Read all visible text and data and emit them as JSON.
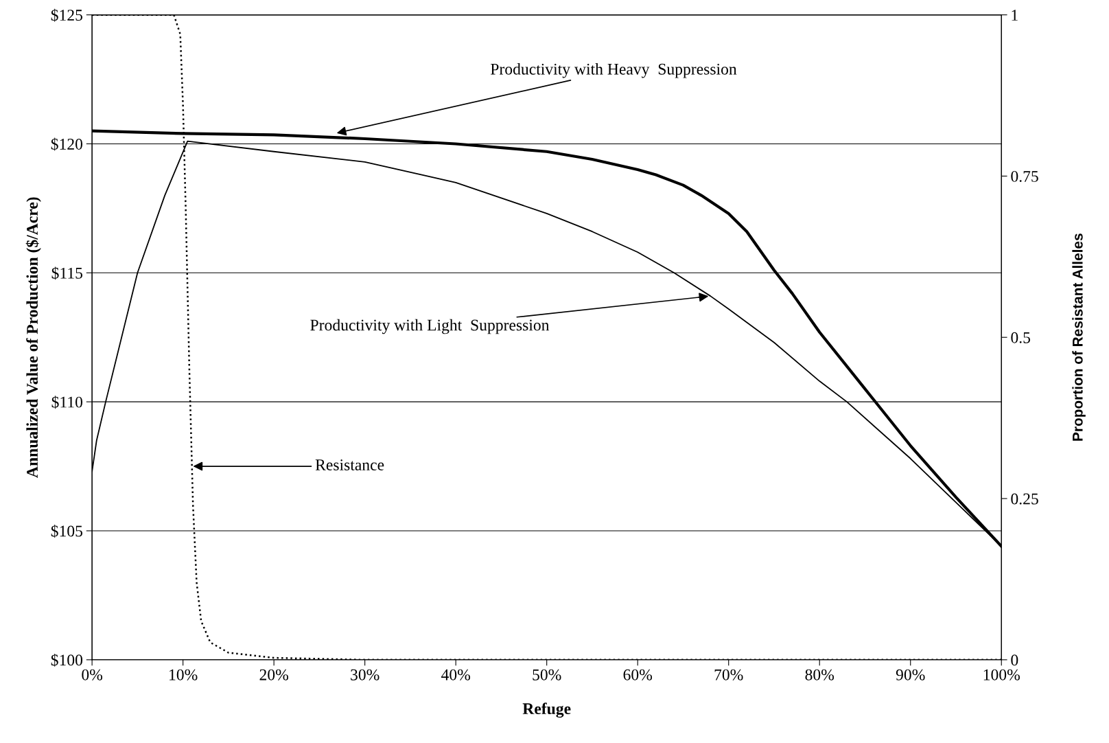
{
  "chart_data": {
    "type": "line",
    "xlabel": "Refuge",
    "ylabel": "Annualized Value of Production ($/Acre)",
    "y2label": "Proportion of Resistant Alleles",
    "xlim": [
      0,
      100
    ],
    "xticks": [
      {
        "value": 0,
        "label": "0%"
      },
      {
        "value": 10,
        "label": "10%"
      },
      {
        "value": 20,
        "label": "20%"
      },
      {
        "value": 30,
        "label": "30%"
      },
      {
        "value": 40,
        "label": "40%"
      },
      {
        "value": 50,
        "label": "50%"
      },
      {
        "value": 60,
        "label": "60%"
      },
      {
        "value": 70,
        "label": "70%"
      },
      {
        "value": 80,
        "label": "80%"
      },
      {
        "value": 90,
        "label": "90%"
      },
      {
        "value": 100,
        "label": "100%"
      }
    ],
    "ylim": [
      100,
      125
    ],
    "yticks": [
      {
        "value": 100,
        "label": "$100"
      },
      {
        "value": 105,
        "label": "$105"
      },
      {
        "value": 110,
        "label": "$110"
      },
      {
        "value": 115,
        "label": "$115"
      },
      {
        "value": 120,
        "label": "$120"
      },
      {
        "value": 125,
        "label": "$125"
      }
    ],
    "y2lim": [
      0,
      1
    ],
    "y2ticks": [
      0,
      0.25,
      0.5,
      0.75,
      1
    ],
    "grid": "y",
    "legend": false,
    "marker": "none",
    "series": [
      {
        "color": "#000000",
        "line_style": "solid",
        "x": [
          0,
          10,
          20,
          30,
          40,
          50,
          55,
          60,
          62,
          65,
          67,
          70,
          72,
          75,
          77,
          80,
          85,
          90,
          95,
          100
        ],
        "values": [
          120.5,
          120.4,
          120.35,
          120.2,
          120.0,
          119.7,
          119.4,
          119.0,
          118.8,
          118.4,
          118.0,
          117.3,
          116.6,
          115.1,
          114.2,
          112.7,
          110.5,
          108.3,
          106.3,
          104.4
        ]
      },
      {
        "color": "#000000",
        "line_style": "solid",
        "x": [
          0,
          0.5,
          1.5,
          5,
          8,
          10.5,
          20,
          30,
          40,
          50,
          55,
          60,
          64,
          68,
          70,
          75,
          80,
          83,
          90,
          95,
          100
        ],
        "values": [
          107.3,
          108.5,
          110,
          115,
          118,
          120.1,
          119.7,
          119.3,
          118.5,
          117.3,
          116.6,
          115.8,
          115,
          114.1,
          113.6,
          112.3,
          110.8,
          110,
          107.8,
          106.1,
          104.4
        ]
      },
      {
        "color": "#000000",
        "line_style": "dotted",
        "axis": "y2",
        "x": [
          0,
          9,
          9.7,
          10,
          10.3,
          10.7,
          11.1,
          11.5,
          12,
          13,
          15,
          20,
          30,
          100
        ],
        "values": [
          1,
          1,
          0.97,
          0.86,
          0.7,
          0.45,
          0.24,
          0.12,
          0.06,
          0.027,
          0.011,
          0.003,
          0,
          0
        ]
      }
    ],
    "annotations": [
      {
        "text": "Productivity with Heavy  Suppression",
        "x": 26.7,
        "y": 120.4
      },
      {
        "text": "Productivity with Light  Suppression",
        "x": 68,
        "y": 114.1
      },
      {
        "text": "Resistance",
        "x": 10.9,
        "y": 107.5
      }
    ]
  }
}
